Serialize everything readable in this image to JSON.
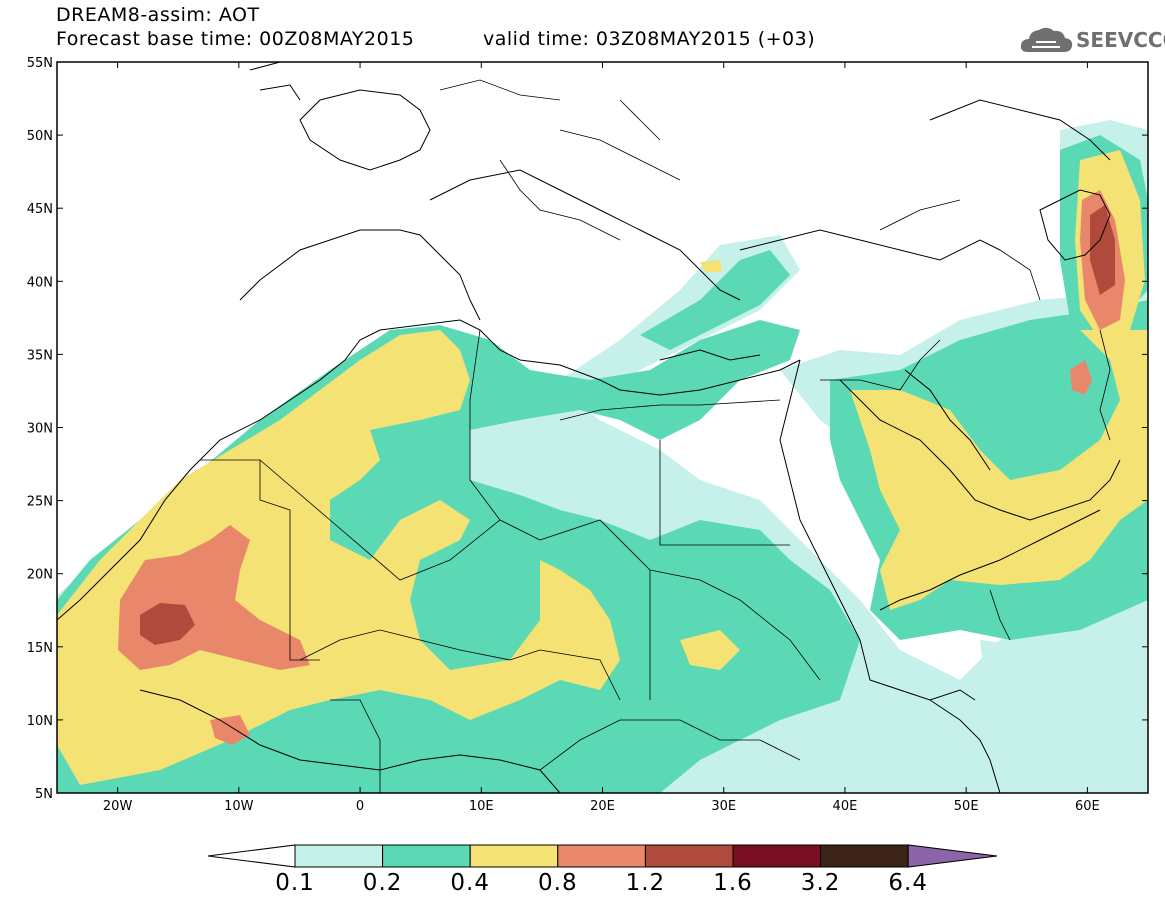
{
  "header": {
    "title_line1": "DREAM8-assim: AOT",
    "title_line2": "Forecast base time: 00Z08MAY2015",
    "valid_time": "valid time: 03Z08MAY2015 (+03)",
    "logo_text": "SEEVCCC"
  },
  "axes": {
    "lat_ticks": [
      "55N",
      "50N",
      "45N",
      "40N",
      "35N",
      "30N",
      "25N",
      "20N",
      "15N",
      "10N",
      "5N"
    ],
    "lon_ticks": [
      "20W",
      "10W",
      "0",
      "10E",
      "20E",
      "30E",
      "40E",
      "50E",
      "60E"
    ]
  },
  "colorbar": {
    "labels": [
      "0.1",
      "0.2",
      "0.4",
      "0.8",
      "1.2",
      "1.6",
      "3.2",
      "6.4"
    ],
    "colors": [
      "#ffffff",
      "#c6f0ea",
      "#5ad9b4",
      "#f5e275",
      "#e8876a",
      "#b04a3c",
      "#7a0f24",
      "#3b2417",
      "#8a64a8"
    ]
  },
  "map": {
    "extent": {
      "lon_min": -25,
      "lon_max": 65,
      "lat_min": 5,
      "lat_max": 55
    },
    "field": "AOT"
  }
}
